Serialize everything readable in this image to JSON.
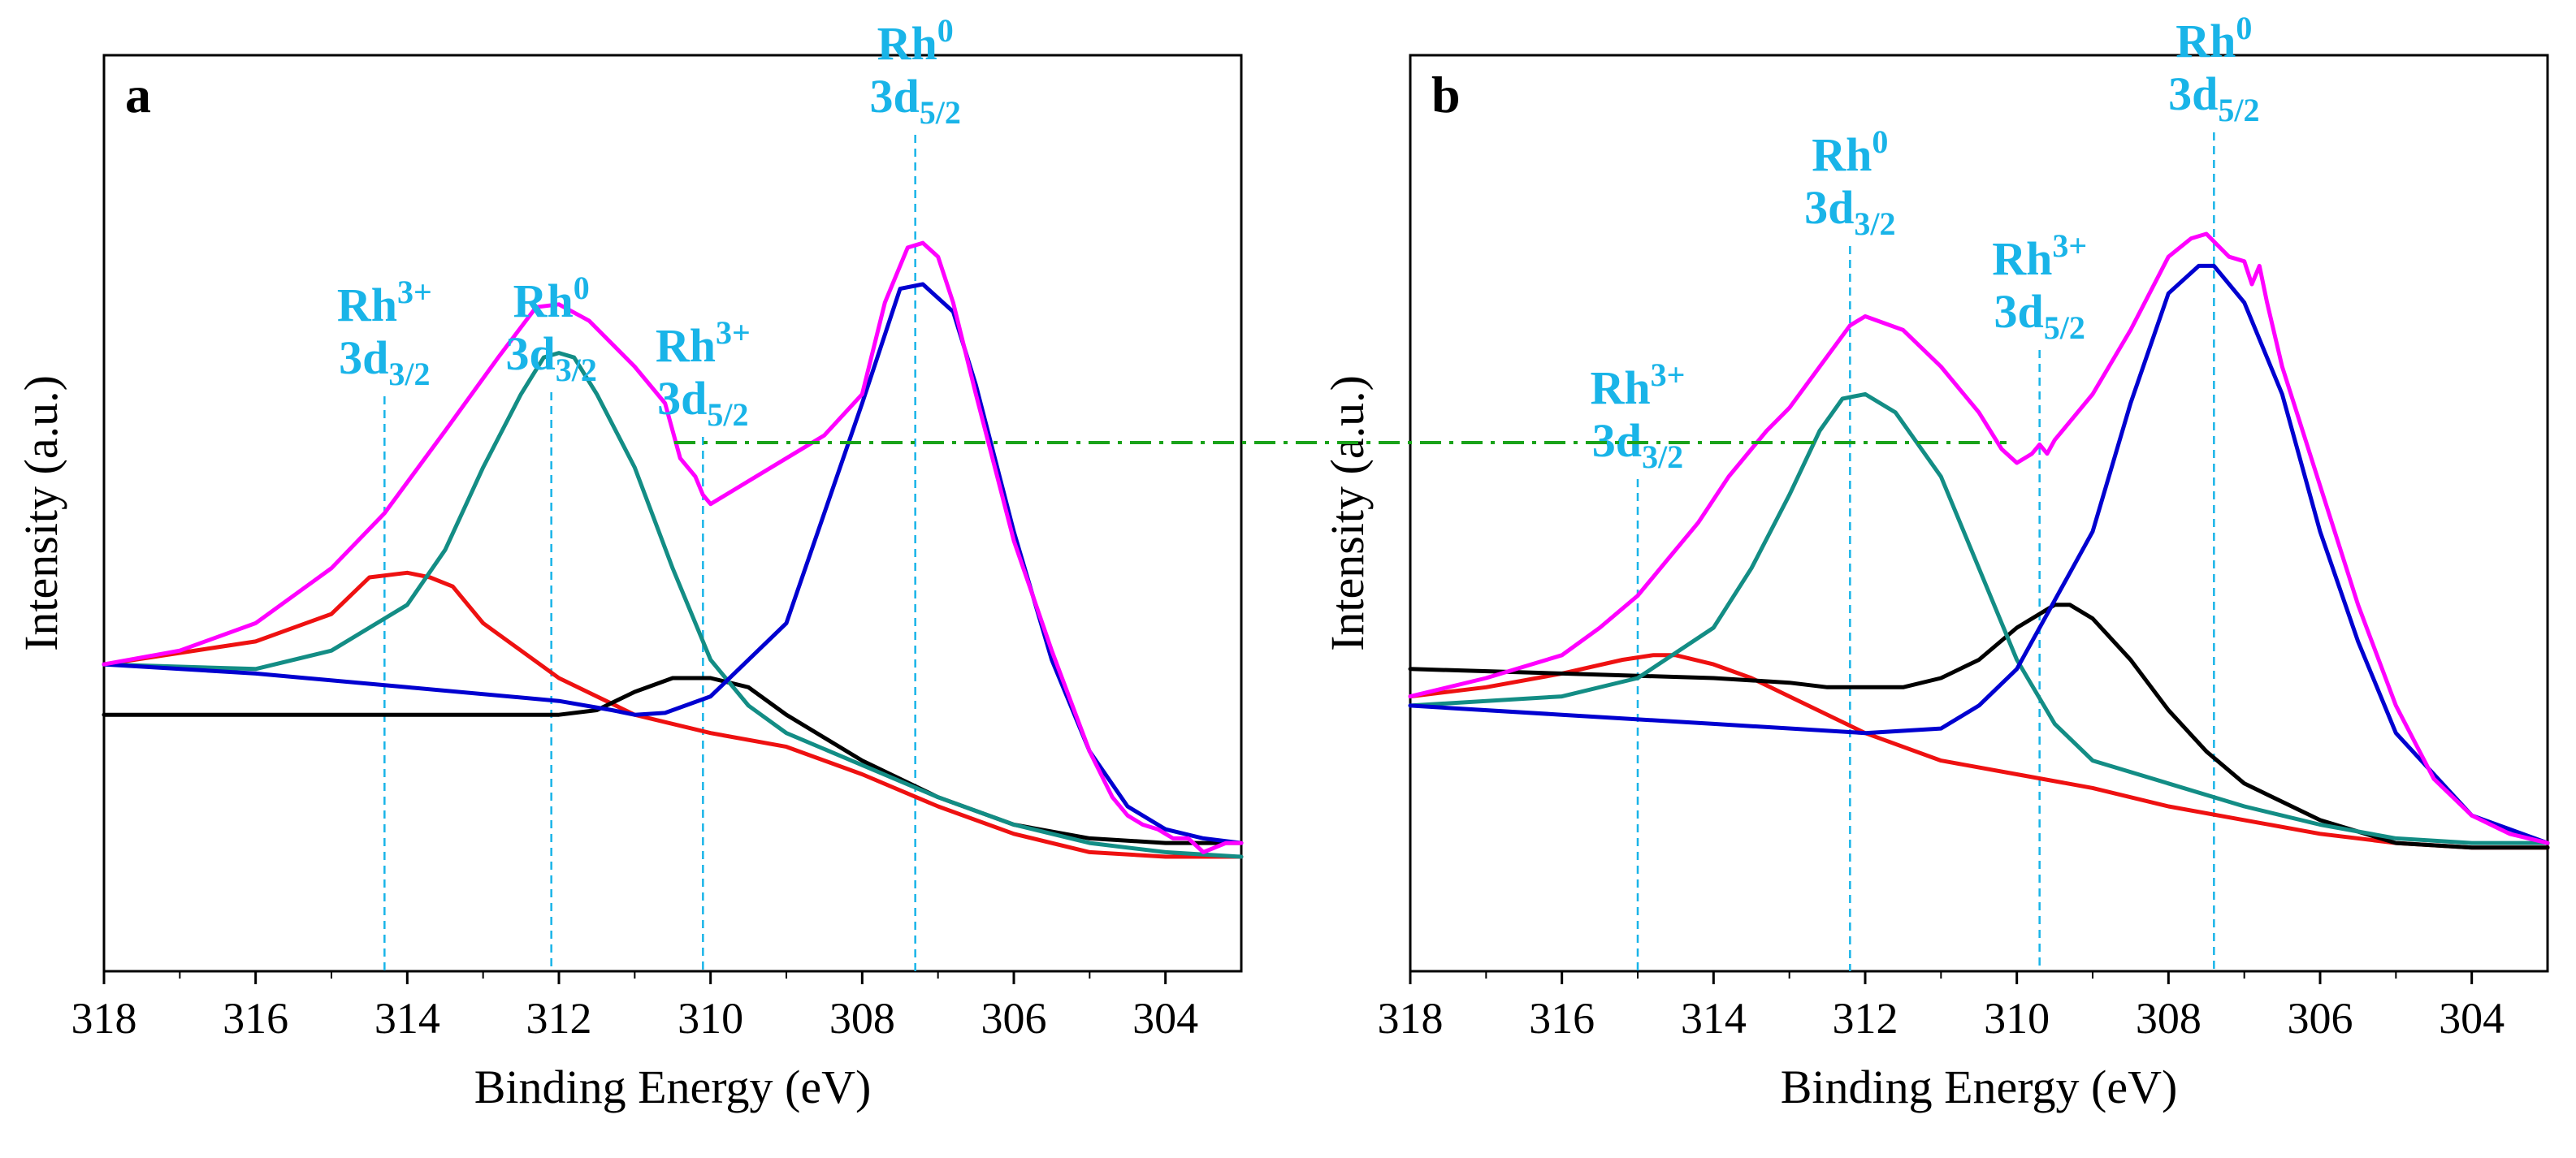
{
  "colors": {
    "envelope": "#ff00ff",
    "rh0_3d52": "#0000d0",
    "rh0_3d32": "#138d85",
    "rh3_3d32": "#ee1111",
    "rh3_3d52": "#000000",
    "marker": "#19b4e8",
    "label": "#19b4e8",
    "reference_line": "#1aa31a"
  },
  "chart_data": [
    {
      "type": "line",
      "panel_label": "a",
      "title": "",
      "xlabel": "Binding Energy (eV)",
      "ylabel": "Intensity (a.u.)",
      "xlim": [
        318,
        303
      ],
      "ylim": [
        0,
        100
      ],
      "x_ticks": [
        "318",
        "316",
        "314",
        "312",
        "310",
        "308",
        "306",
        "304"
      ],
      "grid": false,
      "legend": "none",
      "series": [
        {
          "name": "envelope",
          "color_key": "envelope",
          "x": [
            318,
            317,
            316,
            315,
            314.3,
            313.5,
            312.8,
            312.3,
            312,
            311.6,
            311,
            310.6,
            310.4,
            310.2,
            310.1,
            310.0,
            309.5,
            309,
            308.5,
            308,
            307.7,
            307.4,
            307.2,
            307,
            306.8,
            306.5,
            306,
            305.5,
            305,
            304.7,
            304.5,
            304.3,
            304.1,
            303.9,
            303.7,
            303.5,
            303.2,
            303
          ],
          "values": [
            33.5,
            35,
            38,
            44,
            50,
            59,
            67,
            72.5,
            72.8,
            71,
            66,
            62,
            56,
            54,
            52,
            51,
            53.5,
            56,
            58.5,
            63,
            73,
            79,
            79.5,
            78,
            73,
            63,
            47,
            35,
            24,
            19,
            17,
            16,
            15.5,
            14.5,
            14.5,
            13,
            14,
            14
          ]
        },
        {
          "name": "Rh0 3d5/2",
          "color_key": "rh0_3d52",
          "x": [
            318,
            316,
            314,
            312,
            311.3,
            311,
            310.6,
            310,
            309,
            308,
            307.5,
            307.2,
            306.8,
            306.5,
            306,
            305.5,
            305,
            304.5,
            304,
            303.5,
            303
          ],
          "values": [
            33.5,
            32.5,
            31,
            29.5,
            28.5,
            28,
            28.2,
            30,
            38,
            62,
            74.5,
            75,
            72,
            64,
            48,
            34,
            24,
            18,
            15.5,
            14.5,
            14
          ]
        },
        {
          "name": "Rh0 3d3/2",
          "color_key": "rh0_3d32",
          "x": [
            318,
            316,
            315,
            314,
            313.5,
            313,
            312.5,
            312.2,
            312,
            311.8,
            311.5,
            311,
            310.5,
            310,
            309.5,
            309,
            308,
            307,
            306,
            305,
            304,
            303
          ],
          "values": [
            33.5,
            33,
            35,
            40,
            46,
            55,
            63,
            67,
            67.5,
            67,
            63,
            55,
            44,
            34,
            29,
            26,
            22.5,
            19,
            16,
            14,
            13,
            12.5
          ]
        },
        {
          "name": "Rh3+ 3d3/2",
          "color_key": "rh3_3d32",
          "x": [
            318,
            316,
            315,
            314.5,
            314,
            313.7,
            313.4,
            313,
            312,
            311,
            310,
            309,
            308,
            307,
            306,
            305,
            304,
            303
          ],
          "values": [
            33.5,
            36,
            39,
            43,
            43.5,
            43,
            42,
            38,
            32,
            28,
            26,
            24.5,
            21.5,
            18,
            15,
            13,
            12.5,
            12.5
          ]
        },
        {
          "name": "Rh3+ 3d5/2",
          "color_key": "rh3_3d52",
          "x": [
            318,
            316,
            314,
            312,
            311.5,
            311,
            310.5,
            310,
            309.5,
            309,
            308,
            307,
            306,
            305,
            304,
            303
          ],
          "values": [
            28,
            28,
            28,
            28,
            28.5,
            30.5,
            32,
            32,
            31,
            28,
            23,
            19,
            16,
            14.5,
            14,
            14
          ]
        }
      ],
      "annotations": [
        {
          "x": 314.3,
          "label": "Rh",
          "sup": "3+",
          "level": "3d",
          "sub": "3/2"
        },
        {
          "x": 312.1,
          "label": "Rh",
          "sup": "0",
          "level": "3d",
          "sub": "3/2"
        },
        {
          "x": 310.1,
          "label": "Rh",
          "sup": "3+",
          "level": "3d",
          "sub": "5/2"
        },
        {
          "x": 307.3,
          "label": "Rh",
          "sup": "0",
          "level": "3d",
          "sub": "5/2"
        }
      ]
    },
    {
      "type": "line",
      "panel_label": "b",
      "title": "",
      "xlabel": "Binding Energy (eV)",
      "ylabel": "Intensity (a.u.)",
      "xlim": [
        318,
        303
      ],
      "ylim": [
        0,
        100
      ],
      "x_ticks": [
        "318",
        "316",
        "314",
        "312",
        "310",
        "308",
        "306",
        "304"
      ],
      "grid": false,
      "legend": "none",
      "series": [
        {
          "name": "envelope",
          "color_key": "envelope",
          "x": [
            318,
            317,
            316,
            315.5,
            315,
            314.6,
            314.2,
            313.8,
            313.5,
            313.3,
            313,
            312.6,
            312.2,
            312,
            311.5,
            311,
            310.5,
            310.2,
            310,
            309.8,
            309.7,
            309.6,
            309.5,
            309.4,
            309,
            308.5,
            308,
            307.7,
            307.5,
            307.2,
            307,
            306.9,
            306.8,
            306.7,
            306.5,
            306,
            305.5,
            305,
            304.5,
            304,
            303.5,
            303
          ],
          "values": [
            30,
            32,
            34.5,
            37.5,
            41,
            45,
            49,
            54,
            57,
            59,
            61.5,
            66,
            70.5,
            71.5,
            70,
            66,
            61,
            57,
            55.5,
            56.5,
            57.5,
            56.5,
            58,
            59,
            63,
            70,
            78,
            80,
            80.5,
            78,
            77.5,
            75,
            77,
            73,
            66,
            53,
            40,
            29,
            21,
            17,
            15,
            14
          ]
        },
        {
          "name": "Rh0 3d5/2",
          "color_key": "rh0_3d52",
          "x": [
            318,
            316,
            314,
            312,
            311,
            310.5,
            310,
            309,
            308.5,
            308,
            307.6,
            307.4,
            307,
            306.5,
            306,
            305.5,
            305,
            304,
            303
          ],
          "values": [
            29,
            28,
            27,
            26,
            26.5,
            29,
            33,
            48,
            62,
            74,
            77,
            77,
            73,
            63,
            48,
            36,
            26,
            17,
            14
          ]
        },
        {
          "name": "Rh0 3d3/2",
          "color_key": "rh0_3d32",
          "x": [
            318,
            316,
            315,
            314,
            313.5,
            313,
            312.6,
            312.3,
            312,
            311.6,
            311,
            310.5,
            310,
            309.5,
            309,
            308,
            307,
            306,
            305,
            304,
            303
          ],
          "values": [
            29,
            30,
            32,
            37.5,
            44,
            52,
            59,
            62.5,
            63,
            61,
            54,
            44,
            34,
            27,
            23,
            20.5,
            18,
            16,
            14.5,
            14,
            14
          ]
        },
        {
          "name": "Rh3+ 3d3/2",
          "color_key": "rh3_3d32",
          "x": [
            318,
            317,
            316,
            315.2,
            314.8,
            314.5,
            314,
            313.5,
            313,
            312,
            311,
            310,
            309,
            308,
            307,
            306,
            305,
            304,
            303
          ],
          "values": [
            30,
            31,
            32.5,
            34,
            34.5,
            34.5,
            33.5,
            32,
            30,
            26,
            23,
            21.5,
            20,
            18,
            16.5,
            15,
            14,
            13.5,
            13.5
          ]
        },
        {
          "name": "Rh3+ 3d5/2",
          "color_key": "rh3_3d52",
          "x": [
            318,
            316,
            314,
            313,
            312.5,
            312,
            311.5,
            311,
            310.5,
            310,
            309.5,
            309.3,
            309,
            308.5,
            308,
            307.5,
            307,
            306,
            305,
            304,
            303
          ],
          "values": [
            33,
            32.5,
            32,
            31.5,
            31,
            31,
            31,
            32,
            34,
            37.5,
            40,
            40,
            38.5,
            34,
            28.5,
            24,
            20.5,
            16.5,
            14,
            13.5,
            13.5
          ]
        }
      ],
      "annotations": [
        {
          "x": 315.0,
          "label": "Rh",
          "sup": "3+",
          "level": "3d",
          "sub": "3/2"
        },
        {
          "x": 312.2,
          "label": "Rh",
          "sup": "0",
          "level": "3d",
          "sub": "3/2"
        },
        {
          "x": 309.7,
          "label": "Rh",
          "sup": "3+",
          "level": "3d",
          "sub": "5/2"
        },
        {
          "x": 307.4,
          "label": "Rh",
          "sup": "0",
          "level": "3d",
          "sub": "5/2"
        }
      ]
    }
  ]
}
